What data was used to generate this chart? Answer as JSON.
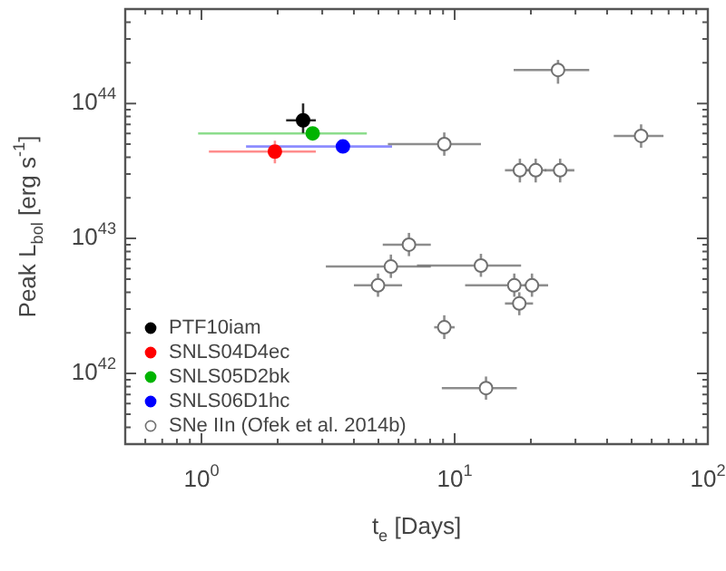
{
  "chart_data": {
    "type": "scatter",
    "xlabel": "t$_{e}$ [Days]",
    "ylabel": "Peak L$_{bol}$ [erg s$^{-1}$]",
    "log": "xy",
    "grid": false,
    "legend": "bottom left",
    "marker": "circle",
    "xlim": [
      0.5,
      100
    ],
    "ylim": [
      3e+41,
      5e+44
    ],
    "xticks": [
      {
        "value": 0.5,
        "label": null
      },
      {
        "value": 0.6,
        "label": null
      },
      {
        "value": 0.7,
        "label": null
      },
      {
        "value": 0.8,
        "label": null
      },
      {
        "value": 0.9,
        "label": null
      },
      {
        "value": 1,
        "label": "10$^{0}$"
      },
      {
        "value": 2,
        "label": null
      },
      {
        "value": 3,
        "label": null
      },
      {
        "value": 4,
        "label": null
      },
      {
        "value": 5,
        "label": null
      },
      {
        "value": 6,
        "label": null
      },
      {
        "value": 7,
        "label": null
      },
      {
        "value": 8,
        "label": null
      },
      {
        "value": 9,
        "label": null
      },
      {
        "value": 10,
        "label": "10$^{1}$"
      },
      {
        "value": 20,
        "label": null
      },
      {
        "value": 30,
        "label": null
      },
      {
        "value": 40,
        "label": null
      },
      {
        "value": 50,
        "label": null
      },
      {
        "value": 60,
        "label": null
      },
      {
        "value": 70,
        "label": null
      },
      {
        "value": 80,
        "label": null
      },
      {
        "value": 90,
        "label": null
      },
      {
        "value": 100,
        "label": "10$^{2}$"
      }
    ],
    "yticks": [
      {
        "value": 3e+41,
        "label": null
      },
      {
        "value": 4e+41,
        "label": null
      },
      {
        "value": 5e+41,
        "label": null
      },
      {
        "value": 6e+41,
        "label": null
      },
      {
        "value": 7e+41,
        "label": null
      },
      {
        "value": 8e+41,
        "label": null
      },
      {
        "value": 9e+41,
        "label": null
      },
      {
        "value": 1e+42,
        "label": "10$^{42}$"
      },
      {
        "value": 2e+42,
        "label": null
      },
      {
        "value": 3e+42,
        "label": null
      },
      {
        "value": 4e+42,
        "label": null
      },
      {
        "value": 5e+42,
        "label": null
      },
      {
        "value": 6e+42,
        "label": null
      },
      {
        "value": 7e+42,
        "label": null
      },
      {
        "value": 8e+42,
        "label": null
      },
      {
        "value": 9e+42,
        "label": null
      },
      {
        "value": 1e+43,
        "label": "10$^{43}$"
      },
      {
        "value": 2e+43,
        "label": null
      },
      {
        "value": 3e+43,
        "label": null
      },
      {
        "value": 4e+43,
        "label": null
      },
      {
        "value": 5e+43,
        "label": null
      },
      {
        "value": 6e+43,
        "label": null
      },
      {
        "value": 7e+43,
        "label": null
      },
      {
        "value": 8e+43,
        "label": null
      },
      {
        "value": 9e+43,
        "label": null
      },
      {
        "value": 1e+44,
        "label": "10$^{44}$"
      },
      {
        "value": 2e+44,
        "label": null
      },
      {
        "value": 3e+44,
        "label": null
      },
      {
        "value": 4e+44,
        "label": null
      },
      {
        "value": 5e+44,
        "label": null
      }
    ],
    "series": [
      {
        "name": "PTF10iam",
        "color": "#000000",
        "x": [
          2.52
        ],
        "values": [
          7.5e+43
        ],
        "xerrors": [
          [
            2.16,
            2.83
          ]
        ],
        "errors": [
          [
            6e+43,
            1e+44
          ]
        ]
      },
      {
        "name": "SNLS04D4ec",
        "color": "#ff0000",
        "x": [
          1.95
        ],
        "values": [
          4.4e+43
        ],
        "xerrors": [
          [
            1.07,
            2.83
          ]
        ],
        "errors": [
          [
            3.6e+43,
            5.3e+43
          ]
        ]
      },
      {
        "name": "SNLS05D2bk",
        "color": "#00b400",
        "x": [
          2.75
        ],
        "values": [
          6e+43
        ],
        "xerrors": [
          [
            0.97,
            4.5
          ]
        ],
        "errors": [
          null
        ]
      },
      {
        "name": "SNLS06D1hc",
        "color": "#0000ff",
        "x": [
          3.62
        ],
        "values": [
          4.8e+43
        ],
        "xerrors": [
          [
            1.5,
            5.66
          ]
        ],
        "errors": [
          null
        ]
      },
      {
        "name": "SNe IIn (Ofek et al. 2014b)",
        "color": "#ffffff",
        "x": [
          25.6,
          54.5,
          9.1,
          18.1,
          20.9,
          26.1,
          6.6,
          5.6,
          12.7,
          4.98,
          17.2,
          20.2,
          18,
          9.1,
          13.3
        ],
        "values": [
          1.77e+44,
          5.75e+43,
          5e+43,
          3.2e+43,
          3.2e+43,
          3.2e+43,
          9e+42,
          6.2e+42,
          6.3e+42,
          4.5e+42,
          4.5e+42,
          4.5e+42,
          3.3e+42,
          2.2e+42,
          7.8e+41
        ],
        "xerrors": [
          [
            17.1,
            34
          ],
          [
            42.5,
            66.8
          ],
          [
            5.45,
            12.7
          ],
          [
            15.8,
            20.2
          ],
          [
            19.3,
            23
          ],
          [
            22.7,
            29.7
          ],
          [
            5.2,
            8.05
          ],
          [
            3.1,
            8.05
          ],
          [
            7.1,
            18.3
          ],
          [
            4.0,
            6.2
          ],
          [
            11,
            21
          ],
          [
            18.8,
            23.4
          ],
          [
            15.8,
            20.4
          ],
          [
            8.3,
            10
          ],
          [
            8.9,
            17.6
          ]
        ],
        "errors": [
          [
            1.4e+44,
            2.1e+44
          ],
          [
            4.7e+43,
            7e+43
          ],
          [
            4.1e+43,
            6.1e+43
          ],
          [
            2.6e+43,
            3.9e+43
          ],
          [
            2.6e+43,
            3.9e+43
          ],
          [
            2.6e+43,
            3.9e+43
          ],
          [
            7.4e+42,
            1.1e+43
          ],
          [
            5.1e+42,
            7.6e+42
          ],
          [
            5.2e+42,
            7.7e+42
          ],
          [
            3.7e+42,
            5.5e+42
          ],
          [
            3.7e+42,
            5.5e+42
          ],
          [
            3.7e+42,
            5.5e+42
          ],
          [
            2.7e+42,
            4e+42
          ],
          [
            1.8e+42,
            2.7e+42
          ],
          [
            6.4e+41,
            9.5e+41
          ]
        ]
      }
    ]
  }
}
